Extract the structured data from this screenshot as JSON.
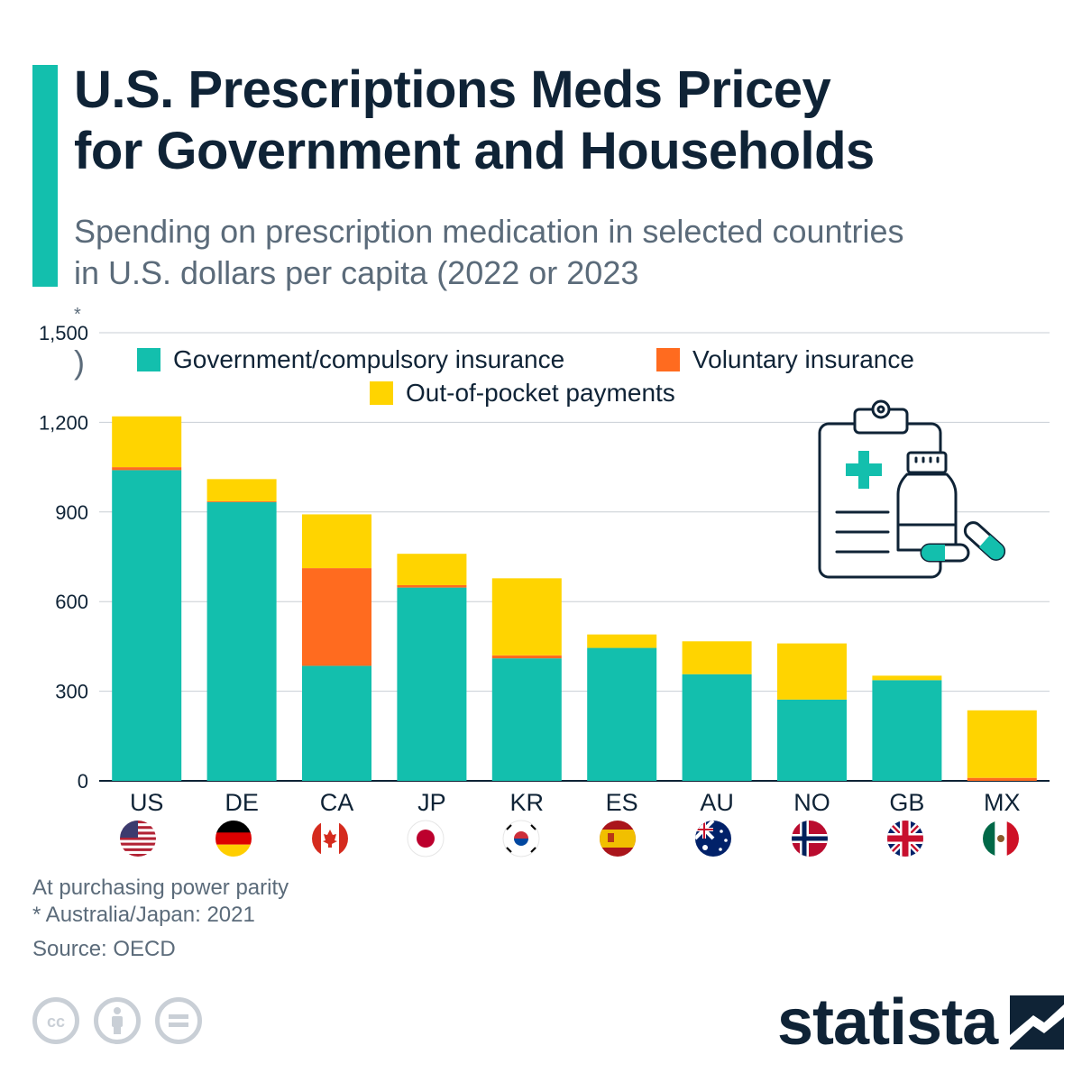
{
  "title_lines": [
    "U.S. Prescriptions Meds Pricey",
    "for Government and Households"
  ],
  "subtitle_lines": [
    "Spending on prescription medication in selected countries",
    "in U.S. dollars per capita (2022 or 2023"
  ],
  "subtitle_asterisk": "*",
  "subtitle_close": ")",
  "footer": {
    "note1": "At purchasing power parity",
    "note2": "* Australia/Japan: 2021",
    "source": "Source: OECD"
  },
  "brand": {
    "name": "statista"
  },
  "license_icons": [
    "cc-icon",
    "attribution-icon",
    "no-derivatives-icon"
  ],
  "colors": {
    "government": "#13bfad",
    "voluntary": "#ff6b1f",
    "out_of_pocket": "#ffd400",
    "accent": "#13bfad",
    "text_dark": "#0f2336",
    "grid": "#c8ced4"
  },
  "chart_data": {
    "type": "bar",
    "stacked": true,
    "categories": [
      "US",
      "DE",
      "CA",
      "JP",
      "KR",
      "ES",
      "AU",
      "NO",
      "GB",
      "MX"
    ],
    "series": [
      {
        "name": "Government/compulsory insurance",
        "values": [
          1040,
          933,
          385,
          647,
          410,
          445,
          357,
          272,
          337,
          0
        ]
      },
      {
        "name": "Voluntary insurance",
        "values": [
          10,
          3,
          327,
          8,
          10,
          0,
          0,
          0,
          0,
          10
        ]
      },
      {
        "name": "Out-of-pocket payments",
        "values": [
          170,
          74,
          180,
          105,
          258,
          45,
          110,
          188,
          15,
          226
        ]
      }
    ],
    "totals": [
      1220,
      1010,
      892,
      760,
      678,
      490,
      467,
      460,
      352,
      236
    ],
    "yticks": [
      "0",
      "300",
      "600",
      "900",
      "1,200",
      "1,500"
    ],
    "ytick_values": [
      0,
      300,
      600,
      900,
      1200,
      1500
    ],
    "ylim": [
      0,
      1500
    ],
    "xlabel": "",
    "ylabel": "",
    "legend_position": "top-center",
    "grid": true
  }
}
